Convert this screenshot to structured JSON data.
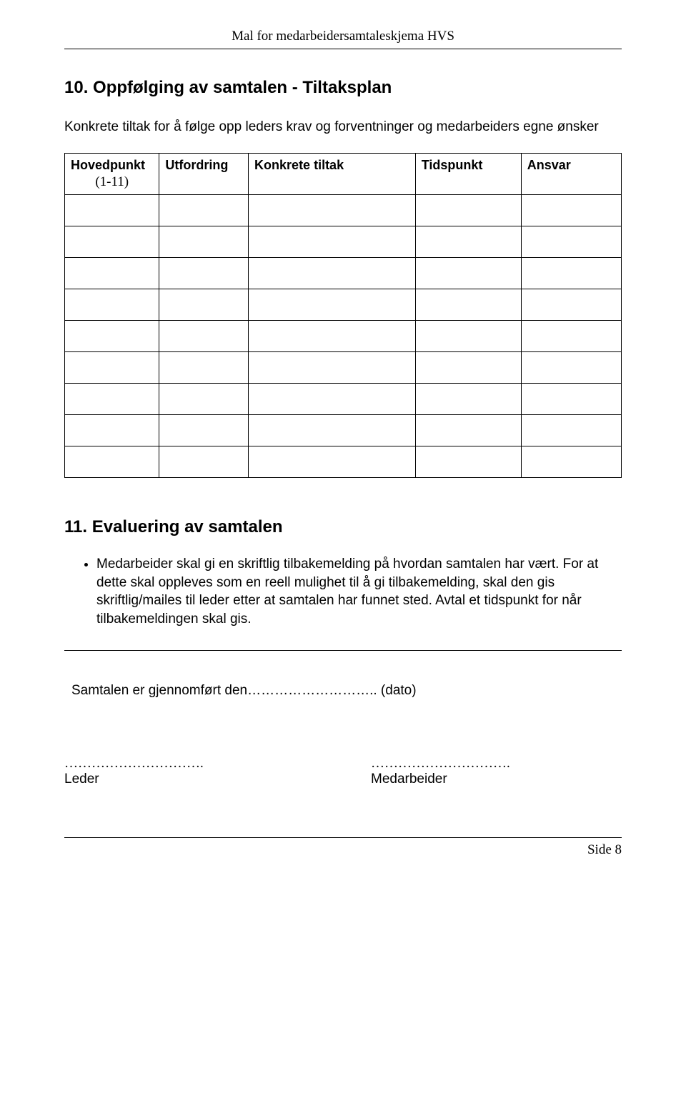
{
  "header": {
    "title": "Mal for medarbeidersamtaleskjema HVS"
  },
  "section10": {
    "title": "10. Oppfølging av samtalen - Tiltaksplan",
    "intro": "Konkrete tiltak for å følge opp leders krav og forventninger og medarbeiders egne ønsker",
    "columns": {
      "hovedpunkt": "Hovedpunkt",
      "hovedpunkt_sub": "(1-11)",
      "utfordring": "Utfordring",
      "konkrete": "Konkrete tiltak",
      "tidspunkt": "Tidspunkt",
      "ansvar": "Ansvar"
    }
  },
  "section11": {
    "title": "11. Evaluering av samtalen",
    "bullet": "Medarbeider skal gi en skriftlig tilbakemelding på hvordan samtalen har vært. For at dette skal oppleves som en reell mulighet til å gi tilbakemelding, skal den gis skriftlig/mailes til leder etter at samtalen har funnet sted. Avtal et tidspunkt for når tilbakemeldingen skal gis."
  },
  "completed": {
    "prefix": "Samtalen er gjennomført den",
    "dots": "………………………..",
    "suffix": "(dato)"
  },
  "signatures": {
    "dots_left": "………………………….",
    "dots_right": "………………………….",
    "leder": "Leder",
    "medarbeider": "Medarbeider"
  },
  "footer": {
    "page": "Side 8"
  }
}
